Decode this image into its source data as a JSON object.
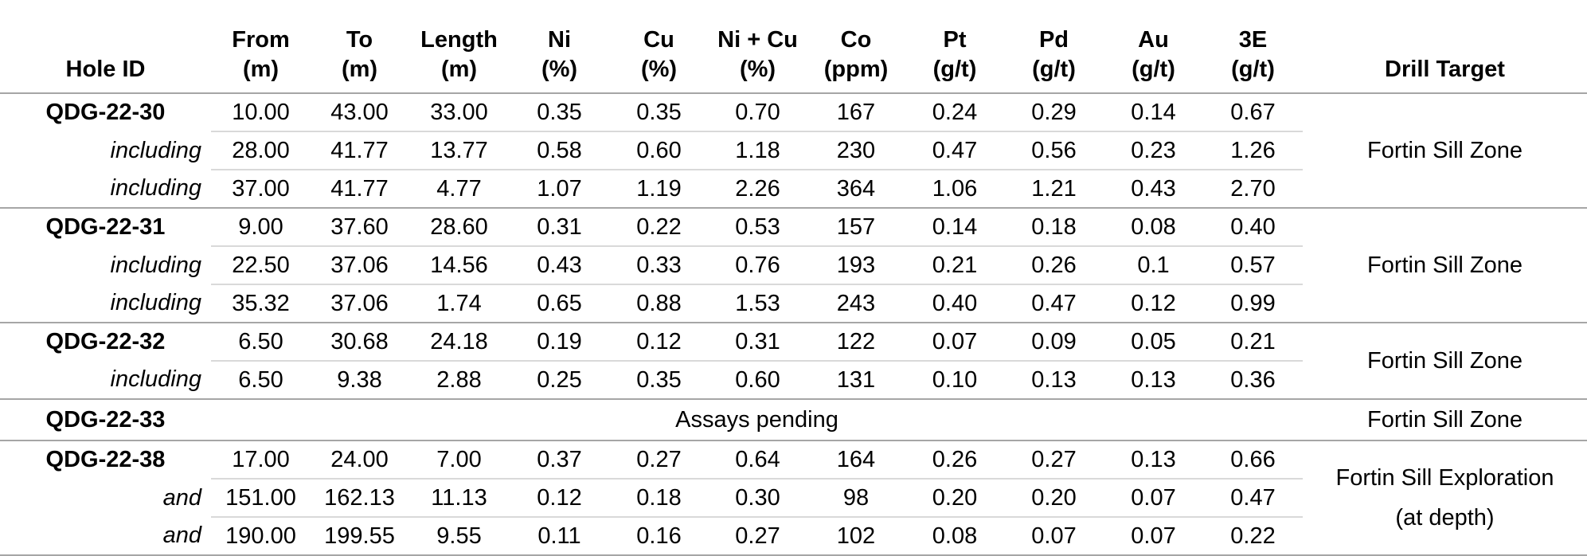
{
  "table": {
    "columns": [
      {
        "label": "Hole ID",
        "unit": ""
      },
      {
        "label": "From",
        "unit": "(m)"
      },
      {
        "label": "To",
        "unit": "(m)"
      },
      {
        "label": "Length",
        "unit": "(m)"
      },
      {
        "label": "Ni",
        "unit": "(%)"
      },
      {
        "label": "Cu",
        "unit": "(%)"
      },
      {
        "label": "Ni + Cu",
        "unit": "(%)"
      },
      {
        "label": "Co",
        "unit": "(ppm)"
      },
      {
        "label": "Pt",
        "unit": "(g/t)"
      },
      {
        "label": "Pd",
        "unit": "(g/t)"
      },
      {
        "label": "Au",
        "unit": "(g/t)"
      },
      {
        "label": "3E",
        "unit": "(g/t)"
      },
      {
        "label": "Drill Target",
        "unit": ""
      }
    ],
    "groups": [
      {
        "target_lines": [
          "Fortin Sill Zone"
        ],
        "rows": [
          {
            "label": "QDG-22-30",
            "label_style": "hole",
            "values": [
              "10.00",
              "43.00",
              "33.00",
              "0.35",
              "0.35",
              "0.70",
              "167",
              "0.24",
              "0.29",
              "0.14",
              "0.67"
            ]
          },
          {
            "label": "including",
            "label_style": "qualifier",
            "values": [
              "28.00",
              "41.77",
              "13.77",
              "0.58",
              "0.60",
              "1.18",
              "230",
              "0.47",
              "0.56",
              "0.23",
              "1.26"
            ]
          },
          {
            "label": "including",
            "label_style": "qualifier",
            "values": [
              "37.00",
              "41.77",
              "4.77",
              "1.07",
              "1.19",
              "2.26",
              "364",
              "1.06",
              "1.21",
              "0.43",
              "2.70"
            ]
          }
        ]
      },
      {
        "target_lines": [
          "Fortin Sill Zone"
        ],
        "rows": [
          {
            "label": "QDG-22-31",
            "label_style": "hole",
            "values": [
              "9.00",
              "37.60",
              "28.60",
              "0.31",
              "0.22",
              "0.53",
              "157",
              "0.14",
              "0.18",
              "0.08",
              "0.40"
            ]
          },
          {
            "label": "including",
            "label_style": "qualifier",
            "values": [
              "22.50",
              "37.06",
              "14.56",
              "0.43",
              "0.33",
              "0.76",
              "193",
              "0.21",
              "0.26",
              "0.1",
              "0.57"
            ]
          },
          {
            "label": "including",
            "label_style": "qualifier",
            "values": [
              "35.32",
              "37.06",
              "1.74",
              "0.65",
              "0.88",
              "1.53",
              "243",
              "0.40",
              "0.47",
              "0.12",
              "0.99"
            ]
          }
        ]
      },
      {
        "target_lines": [
          "Fortin Sill Zone"
        ],
        "rows": [
          {
            "label": "QDG-22-32",
            "label_style": "hole",
            "values": [
              "6.50",
              "30.68",
              "24.18",
              "0.19",
              "0.12",
              "0.31",
              "122",
              "0.07",
              "0.09",
              "0.05",
              "0.21"
            ]
          },
          {
            "label": "including",
            "label_style": "qualifier",
            "values": [
              "6.50",
              "9.38",
              "2.88",
              "0.25",
              "0.35",
              "0.60",
              "131",
              "0.10",
              "0.13",
              "0.13",
              "0.36"
            ]
          }
        ]
      },
      {
        "target_lines": [
          "Fortin Sill Zone"
        ],
        "rows": [
          {
            "label": "QDG-22-33",
            "label_style": "hole",
            "note": "Assays pending"
          }
        ]
      },
      {
        "target_lines": [
          "Fortin Sill Exploration",
          "(at depth)"
        ],
        "rows": [
          {
            "label": "QDG-22-38",
            "label_style": "hole",
            "values": [
              "17.00",
              "24.00",
              "7.00",
              "0.37",
              "0.27",
              "0.64",
              "164",
              "0.26",
              "0.27",
              "0.13",
              "0.66"
            ]
          },
          {
            "label": "and",
            "label_style": "qualifier",
            "values": [
              "151.00",
              "162.13",
              "11.13",
              "0.12",
              "0.18",
              "0.30",
              "98",
              "0.20",
              "0.20",
              "0.07",
              "0.47"
            ]
          },
          {
            "label": "and",
            "label_style": "qualifier",
            "values": [
              "190.00",
              "199.55",
              "9.55",
              "0.11",
              "0.16",
              "0.27",
              "102",
              "0.08",
              "0.07",
              "0.07",
              "0.22"
            ]
          }
        ]
      }
    ]
  },
  "colors": {
    "text": "#000000",
    "group_line": "#a6a6a6",
    "sub_line": "#d9d9d9",
    "background": "#ffffff"
  }
}
